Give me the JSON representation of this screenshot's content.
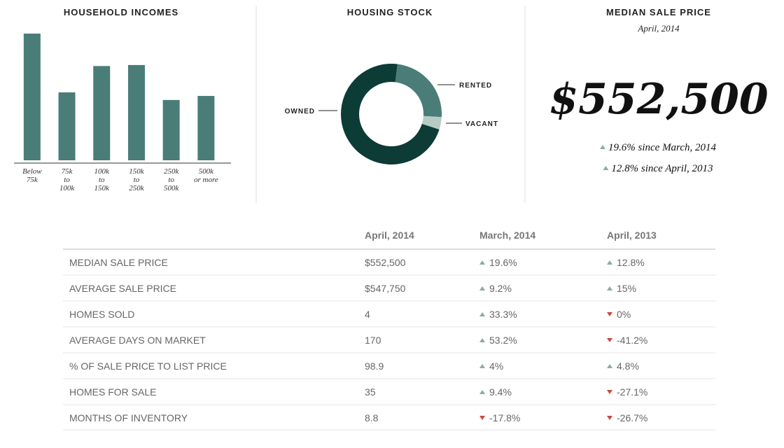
{
  "chart_data": [
    {
      "type": "bar",
      "title": "HOUSEHOLD INCOMES",
      "categories": [
        "Below\n75k",
        "75k\nto\n100k",
        "100k\nto\n150k",
        "150k\nto\n250k",
        "250k\nto\n500k",
        "500k\nor more"
      ],
      "values": [
        25,
        13.4,
        18.6,
        18.8,
        11.9,
        12.7
      ],
      "color": "#4a7d77",
      "ylim": [
        0,
        25
      ]
    },
    {
      "type": "pie",
      "title": "HOUSING STOCK",
      "categories": [
        "RENTED",
        "VACANT",
        "OWNED"
      ],
      "values": [
        24,
        4,
        72
      ],
      "colors": [
        "#4a7d77",
        "#b5cbc4",
        "#0d3b36"
      ]
    }
  ],
  "price_panel": {
    "title": "MEDIAN SALE PRICE",
    "subtitle": "April, 2014",
    "price": "$552,500",
    "changes": [
      {
        "text": "19.6% since March, 2014",
        "trend": "up"
      },
      {
        "text": "12.8% since April, 2013",
        "trend": "up"
      }
    ]
  },
  "table": {
    "columns": [
      "April, 2014",
      "March, 2014",
      "April, 2013"
    ],
    "rows": [
      {
        "label": "MEDIAN SALE PRICE",
        "value": "$552,500",
        "changes": [
          {
            "text": "19.6%",
            "trend": "up"
          },
          {
            "text": "12.8%",
            "trend": "up"
          }
        ]
      },
      {
        "label": "AVERAGE SALE PRICE",
        "value": "$547,750",
        "changes": [
          {
            "text": "9.2%",
            "trend": "up"
          },
          {
            "text": "15%",
            "trend": "up"
          }
        ]
      },
      {
        "label": "HOMES SOLD",
        "value": "4",
        "changes": [
          {
            "text": "33.3%",
            "trend": "up"
          },
          {
            "text": "0%",
            "trend": "down"
          }
        ]
      },
      {
        "label": "AVERAGE DAYS ON MARKET",
        "value": "170",
        "changes": [
          {
            "text": "53.2%",
            "trend": "up"
          },
          {
            "text": "-41.2%",
            "trend": "down"
          }
        ]
      },
      {
        "label": "% OF SALE PRICE TO LIST PRICE",
        "value": "98.9",
        "changes": [
          {
            "text": "4%",
            "trend": "up"
          },
          {
            "text": "4.8%",
            "trend": "up"
          }
        ]
      },
      {
        "label": "HOMES FOR SALE",
        "value": "35",
        "changes": [
          {
            "text": "9.4%",
            "trend": "up"
          },
          {
            "text": "-27.1%",
            "trend": "down"
          }
        ]
      },
      {
        "label": "MONTHS OF INVENTORY",
        "value": "8.8",
        "changes": [
          {
            "text": "-17.8%",
            "trend": "down"
          },
          {
            "text": "-26.7%",
            "trend": "down"
          }
        ]
      }
    ]
  }
}
